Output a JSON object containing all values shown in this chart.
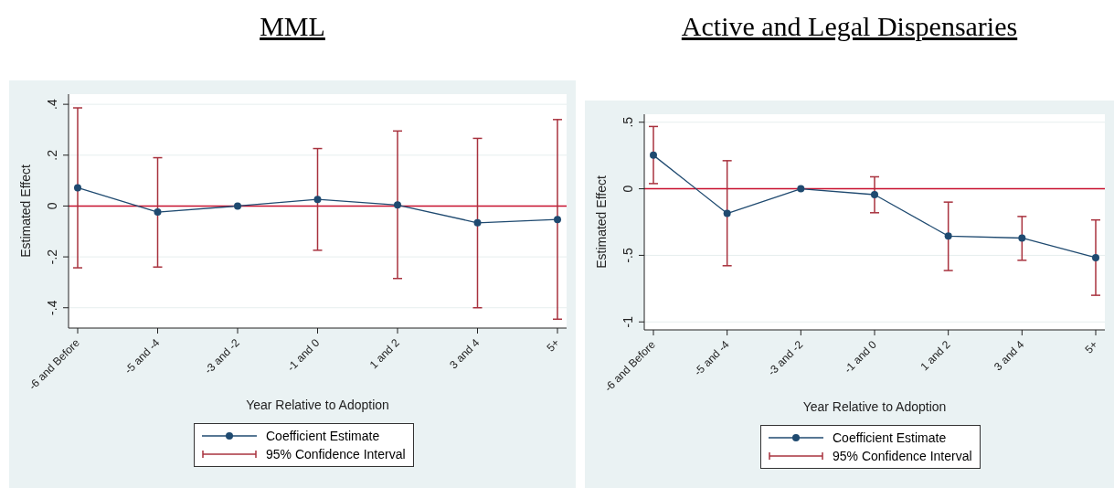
{
  "chart_data": [
    {
      "type": "line",
      "title": "MML",
      "xlabel": "Year Relative to Adoption",
      "ylabel": "Estimated Effect",
      "categories": [
        "-6 and Before",
        "-5 and -4",
        "-3 and -2",
        "-1 and 0",
        "1 and 2",
        "3 and 4",
        "5+"
      ],
      "series": [
        {
          "name": "Coefficient Estimate",
          "color": "#1f4a70",
          "values": [
            0.072,
            -0.024,
            0,
            0.026,
            0.004,
            -0.066,
            -0.053
          ],
          "errors": [
            [
              -0.243,
              0.386
            ],
            [
              -0.24,
              0.19
            ],
            null,
            [
              -0.174,
              0.226
            ],
            [
              -0.285,
              0.295
            ],
            [
              -0.4,
              0.266
            ],
            [
              -0.445,
              0.34
            ]
          ]
        }
      ],
      "annotations": [
        "95% Confidence Interval"
      ],
      "ylim": [
        -0.48,
        0.44
      ],
      "yticks": [
        {
          "value": -0.4,
          "label": "-.4"
        },
        {
          "value": -0.2,
          "label": "-.2"
        },
        0,
        {
          "value": 0.2,
          "label": ".2"
        },
        {
          "value": 0.4,
          "label": ".4"
        }
      ],
      "ref_lines": [
        {
          "axis": "y",
          "value": 0,
          "color": "#c8102e"
        }
      ],
      "grid": "y",
      "marker": "circle",
      "legend": "bottom"
    },
    {
      "type": "line",
      "title": "Active and Legal Dispensaries",
      "xlabel": "Year Relative to Adoption",
      "ylabel": "Estimated Effect",
      "categories": [
        "-6 and Before",
        "-5 and -4",
        "-3 and -2",
        "-1 and 0",
        "1 and 2",
        "3 and 4",
        "5+"
      ],
      "series": [
        {
          "name": "Coefficient Estimate",
          "color": "#1f4a70",
          "values": [
            0.252,
            -0.185,
            0,
            -0.044,
            -0.355,
            -0.37,
            -0.517
          ],
          "errors": [
            [
              0.039,
              0.468
            ],
            [
              -0.578,
              0.211
            ],
            null,
            [
              -0.18,
              0.09
            ],
            [
              -0.614,
              -0.1
            ],
            [
              -0.537,
              -0.208
            ],
            [
              -0.8,
              -0.234
            ]
          ]
        }
      ],
      "annotations": [
        "95% Confidence Interval"
      ],
      "ylim": [
        -1.06,
        0.56
      ],
      "yticks": [
        {
          "value": -1,
          "label": "-1"
        },
        {
          "value": -0.5,
          "label": "-.5"
        },
        0,
        {
          "value": 0.5,
          "label": ".5"
        }
      ],
      "ref_lines": [
        {
          "axis": "y",
          "value": 0,
          "color": "#c8102e"
        }
      ],
      "grid": "y",
      "marker": "circle",
      "legend": "bottom"
    }
  ]
}
